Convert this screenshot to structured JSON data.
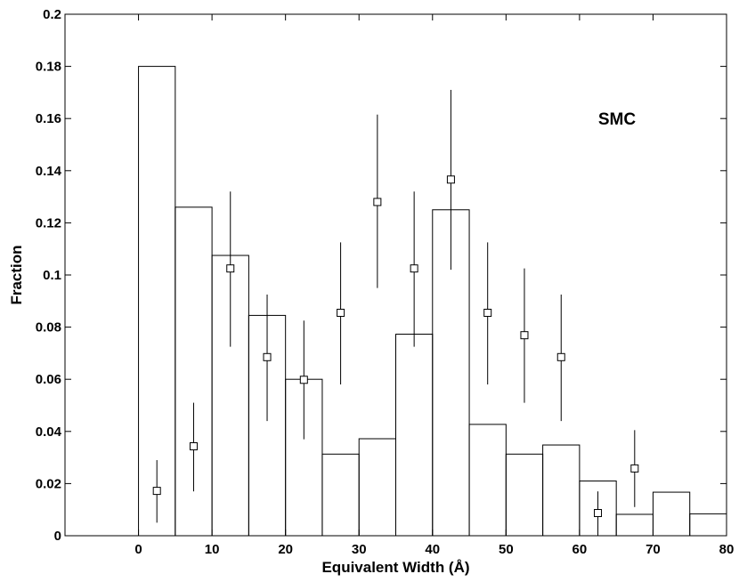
{
  "chart_data": {
    "type": "bar",
    "title": "",
    "xlabel": "Equivalent Width (Å)",
    "ylabel": "Fraction",
    "xlim": [
      -10,
      80
    ],
    "ylim": [
      0,
      0.2
    ],
    "x_ticks": [
      "0",
      "10",
      "20",
      "30",
      "40",
      "50",
      "60",
      "70",
      "80"
    ],
    "y_ticks": [
      "0",
      "0.02",
      "0.04",
      "0.06",
      "0.08",
      "0.1",
      "0.12",
      "0.14",
      "0.16",
      "0.18",
      "0.2"
    ],
    "annotation": "SMC",
    "grid": false,
    "histogram": {
      "bin_width": 5,
      "bin_starts": [
        0,
        5,
        10,
        15,
        20,
        25,
        30,
        35,
        40,
        45,
        50,
        55,
        60,
        65,
        70,
        75
      ],
      "values": [
        0.18,
        0.126,
        0.1075,
        0.0845,
        0.06,
        0.0313,
        0.0372,
        0.0773,
        0.125,
        0.0427,
        0.0313,
        0.0348,
        0.021,
        0.0082,
        0.0167,
        0.0084
      ]
    },
    "points": {
      "marker": "square",
      "x": [
        2.5,
        7.5,
        12.5,
        17.5,
        22.5,
        27.5,
        32.5,
        37.5,
        42.5,
        47.5,
        52.5,
        57.5,
        62.5,
        67.5
      ],
      "y": [
        0.0172,
        0.0343,
        0.1025,
        0.0685,
        0.0598,
        0.0855,
        0.128,
        0.1025,
        0.1366,
        0.0855,
        0.0769,
        0.0685,
        0.0087,
        0.0258
      ],
      "err_low": [
        0.005,
        0.017,
        0.0725,
        0.044,
        0.037,
        0.058,
        0.095,
        0.0725,
        0.102,
        0.058,
        0.051,
        0.044,
        0.0,
        0.011
      ],
      "err_high": [
        0.029,
        0.051,
        0.132,
        0.0925,
        0.0825,
        0.1125,
        0.1615,
        0.132,
        0.171,
        0.1125,
        0.1025,
        0.0925,
        0.017,
        0.0405
      ]
    }
  }
}
